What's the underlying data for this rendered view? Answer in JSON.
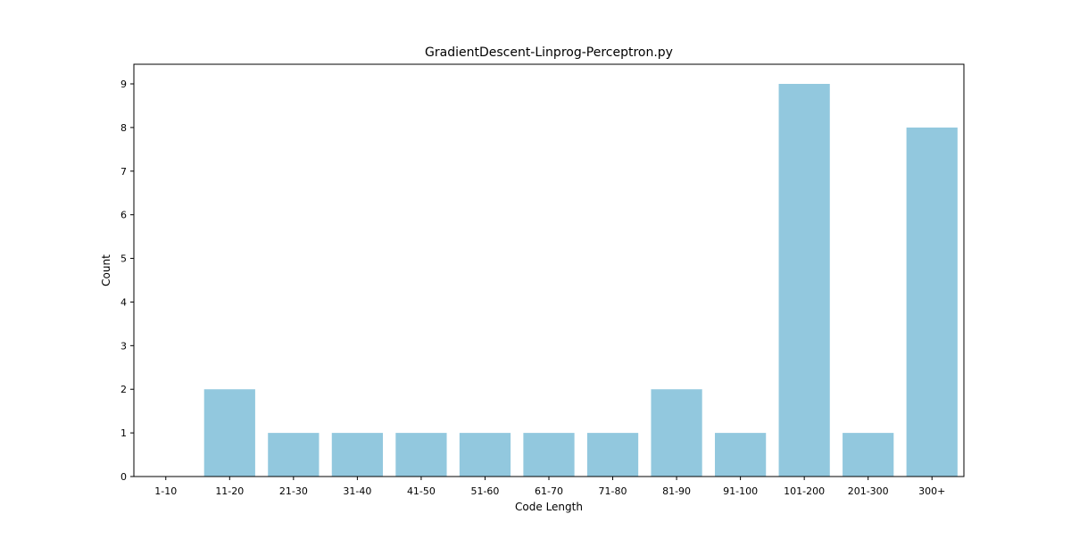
{
  "chart_data": {
    "type": "bar",
    "title": "GradientDescent-Linprog-Perceptron.py",
    "xlabel": "Code Length",
    "ylabel": "Count",
    "categories": [
      "1-10",
      "11-20",
      "21-30",
      "31-40",
      "41-50",
      "51-60",
      "61-70",
      "71-80",
      "81-90",
      "91-100",
      "101-200",
      "201-300",
      "300+"
    ],
    "values": [
      0,
      2,
      1,
      1,
      1,
      1,
      1,
      1,
      2,
      1,
      9,
      1,
      8
    ],
    "ylim": [
      0,
      9.45
    ],
    "yticks": [
      0,
      1,
      2,
      3,
      4,
      5,
      6,
      7,
      8,
      9
    ],
    "bar_color": "#92c8de",
    "grid": false,
    "legend": "none"
  }
}
